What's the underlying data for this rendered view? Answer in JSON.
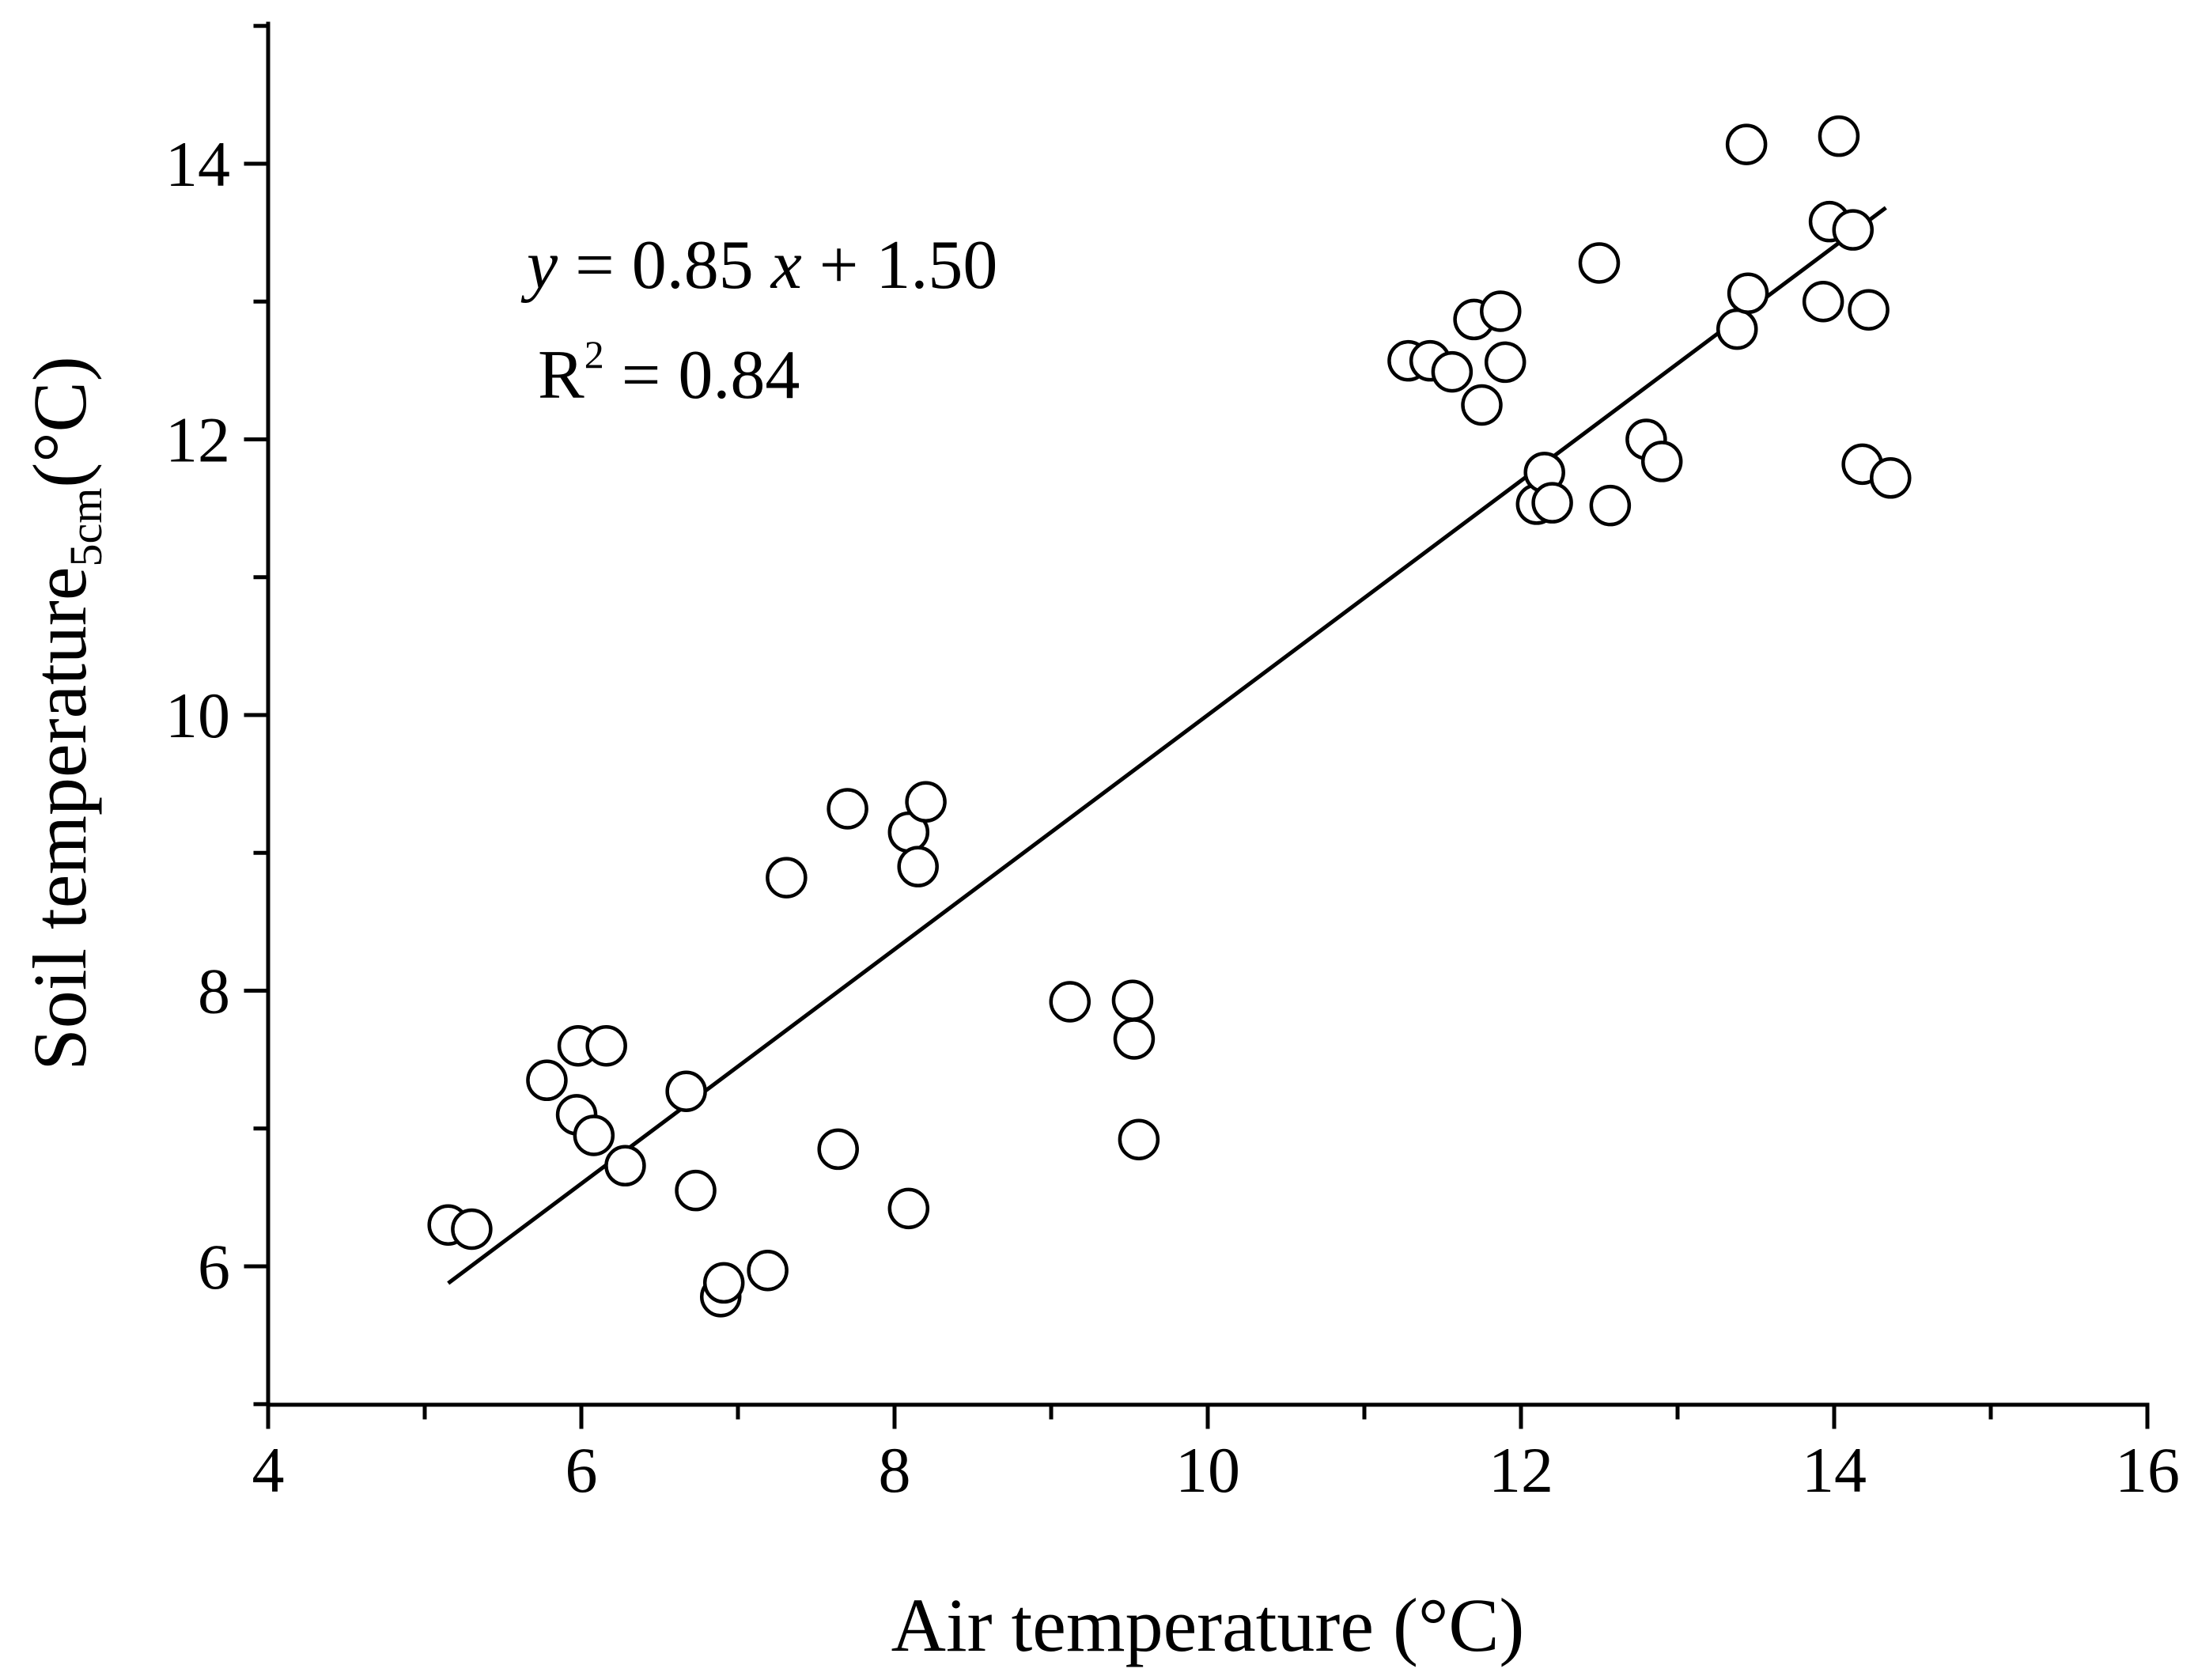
{
  "chart_data": {
    "type": "scatter",
    "title": "",
    "xlabel": "Air temperature (°C)",
    "ylabel": {
      "main": "Soil temperature",
      "subscript": "5cm",
      "unit": "(°C)"
    },
    "xlim": [
      4,
      16
    ],
    "ylim": [
      5,
      15
    ],
    "xticks": [
      4,
      6,
      8,
      10,
      12,
      14,
      16
    ],
    "yticks": [
      6,
      8,
      10,
      12,
      14
    ],
    "xtick_labels": [
      "4",
      "6",
      "8",
      "10",
      "12",
      "14",
      "16"
    ],
    "ytick_labels": [
      "6",
      "8",
      "10",
      "12",
      "14"
    ],
    "grid": false,
    "series": [
      {
        "name": "observations",
        "marker": "open-circle",
        "x": [
          5.15,
          5.3,
          5.78,
          5.97,
          5.98,
          6.08,
          6.16,
          6.28,
          6.67,
          6.73,
          6.89,
          6.91,
          7.19,
          7.31,
          7.64,
          7.7,
          8.09,
          8.09,
          8.15,
          8.2,
          9.12,
          9.52,
          9.53,
          9.56,
          11.28,
          11.42,
          11.56,
          11.7,
          11.75,
          11.87,
          11.9,
          12.1,
          12.15,
          12.2,
          12.5,
          12.57,
          12.8,
          12.9,
          13.38,
          13.44,
          13.45,
          13.93,
          13.97,
          14.03,
          14.12,
          14.18,
          14.22,
          14.36
        ],
        "y": [
          6.3,
          6.27,
          7.35,
          7.1,
          7.6,
          6.95,
          7.6,
          6.73,
          7.27,
          6.55,
          5.78,
          5.88,
          5.97,
          8.82,
          6.85,
          9.32,
          6.42,
          9.15,
          8.9,
          9.37,
          7.92,
          7.93,
          7.65,
          6.92,
          12.57,
          12.57,
          12.49,
          12.87,
          12.25,
          12.93,
          12.56,
          11.53,
          11.76,
          11.54,
          13.28,
          11.52,
          12.0,
          11.84,
          12.8,
          14.14,
          13.06,
          13.0,
          13.58,
          14.2,
          13.52,
          11.82,
          12.94,
          11.72
        ]
      },
      {
        "name": "linear fit",
        "type": "line",
        "slope": 0.85,
        "intercept": 1.5,
        "x_range": [
          5.15,
          14.33
        ]
      }
    ],
    "annotations": {
      "equation": {
        "y_var": "y",
        "mid": " = 0.85 ",
        "x_var": "x",
        "tail": " + 1.50"
      },
      "r_squared": {
        "symbol": "R",
        "exponent": "2",
        "value": " = 0.84"
      }
    }
  }
}
